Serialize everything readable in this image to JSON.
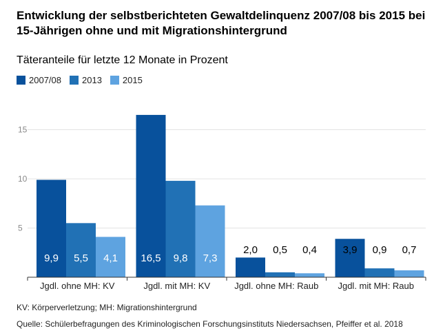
{
  "header": {
    "title": "Entwicklung der selbstberichteten Gewaltdelinquenz 2007/08 bis 2015 bei 15-Jährigen ohne und mit Migrationshintergrund",
    "subtitle": "Täteranteile für letzte 12 Monate in Prozent"
  },
  "footer": {
    "note": "KV: Körperverletzung; MH: Migrationshintergrund",
    "source": "Quelle: Schülerbefragungen des Kriminologischen Forschungsinstituts Niedersachsen, Pfeiffer et al. 2018"
  },
  "chart_data": {
    "type": "bar",
    "categories": [
      "Jgdl. ohne MH: KV",
      "Jgdl. mit MH: KV",
      "Jgdl. ohne MH: Raub",
      "Jgdl. mit MH: Raub"
    ],
    "series": [
      {
        "name": "2007/08",
        "color": "#08519c",
        "values": [
          9.9,
          16.5,
          2.0,
          3.9
        ],
        "labels": [
          "9,9",
          "16,5",
          "2,0",
          "3,9"
        ]
      },
      {
        "name": "2013",
        "color": "#2171b5",
        "values": [
          5.5,
          9.8,
          0.5,
          0.9
        ],
        "labels": [
          "5,5",
          "9,8",
          "0,5",
          "0,9"
        ]
      },
      {
        "name": "2015",
        "color": "#5ea3e0",
        "values": [
          4.1,
          7.3,
          0.4,
          0.7
        ],
        "labels": [
          "4,1",
          "7,3",
          "0,4",
          "0,7"
        ]
      }
    ],
    "yticks": [
      "5",
      "10",
      "15"
    ],
    "ylim": [
      0,
      17.5
    ],
    "grid": true,
    "legend_position": "top-left"
  }
}
